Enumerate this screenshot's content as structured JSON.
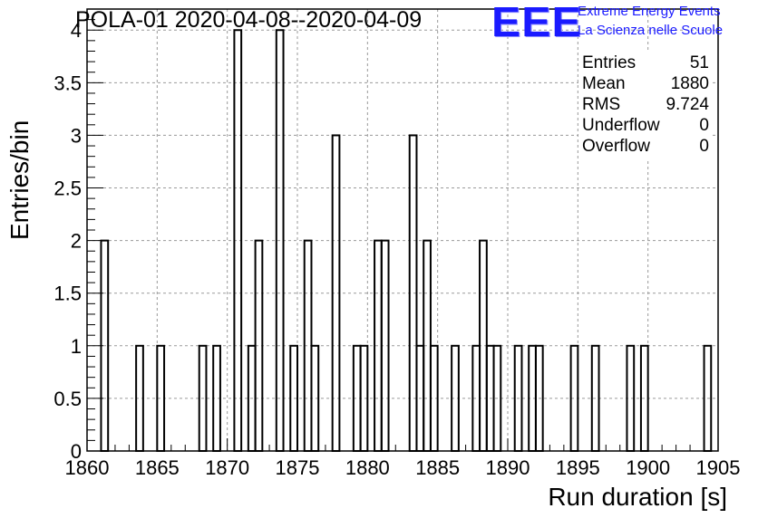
{
  "header": {
    "title": "POLA-01 2020-04-08--2020-04-09"
  },
  "logo": {
    "mark": "EEE",
    "line1": "Extreme Energy Events",
    "line2": "La Scienza nelle Scuole"
  },
  "stats": {
    "entries_label": "Entries",
    "entries_value": "51",
    "mean_label": "Mean",
    "mean_value": "1880",
    "rms_label": "RMS",
    "rms_value": "9.724",
    "underflow_label": "Underflow",
    "underflow_value": "0",
    "overflow_label": "Overflow",
    "overflow_value": "0"
  },
  "chart_data": {
    "type": "histogram",
    "title": "POLA-01 2020-04-08--2020-04-09",
    "xlabel": "Run duration [s]",
    "ylabel": "Entries/bin",
    "xlim": [
      1860,
      1905
    ],
    "ylim": [
      0,
      4.2
    ],
    "bin_width": 0.5,
    "grid": true,
    "x_ticks": [
      "1860",
      "1865",
      "1870",
      "1875",
      "1880",
      "1885",
      "1890",
      "1895",
      "1900",
      "1905"
    ],
    "y_ticks": [
      "0",
      "0.5",
      "1",
      "1.5",
      "2",
      "2.5",
      "3",
      "3.5",
      "4"
    ],
    "bins": [
      {
        "x": 1861.0,
        "value": 2
      },
      {
        "x": 1863.5,
        "value": 1
      },
      {
        "x": 1865.0,
        "value": 1
      },
      {
        "x": 1868.0,
        "value": 1
      },
      {
        "x": 1869.0,
        "value": 1
      },
      {
        "x": 1870.5,
        "value": 4
      },
      {
        "x": 1871.5,
        "value": 1
      },
      {
        "x": 1872.0,
        "value": 2
      },
      {
        "x": 1873.5,
        "value": 4
      },
      {
        "x": 1874.5,
        "value": 1
      },
      {
        "x": 1875.5,
        "value": 2
      },
      {
        "x": 1876.0,
        "value": 1
      },
      {
        "x": 1877.5,
        "value": 3
      },
      {
        "x": 1879.0,
        "value": 1
      },
      {
        "x": 1879.5,
        "value": 1
      },
      {
        "x": 1880.5,
        "value": 2
      },
      {
        "x": 1881.0,
        "value": 2
      },
      {
        "x": 1883.0,
        "value": 3
      },
      {
        "x": 1883.5,
        "value": 1
      },
      {
        "x": 1884.0,
        "value": 2
      },
      {
        "x": 1884.5,
        "value": 1
      },
      {
        "x": 1886.0,
        "value": 1
      },
      {
        "x": 1887.5,
        "value": 1
      },
      {
        "x": 1888.0,
        "value": 2
      },
      {
        "x": 1888.5,
        "value": 1
      },
      {
        "x": 1889.0,
        "value": 1
      },
      {
        "x": 1890.5,
        "value": 1
      },
      {
        "x": 1891.5,
        "value": 1
      },
      {
        "x": 1892.0,
        "value": 1
      },
      {
        "x": 1894.5,
        "value": 1
      },
      {
        "x": 1896.0,
        "value": 1
      },
      {
        "x": 1898.5,
        "value": 1
      },
      {
        "x": 1899.5,
        "value": 1
      },
      {
        "x": 1904.0,
        "value": 1
      }
    ]
  }
}
